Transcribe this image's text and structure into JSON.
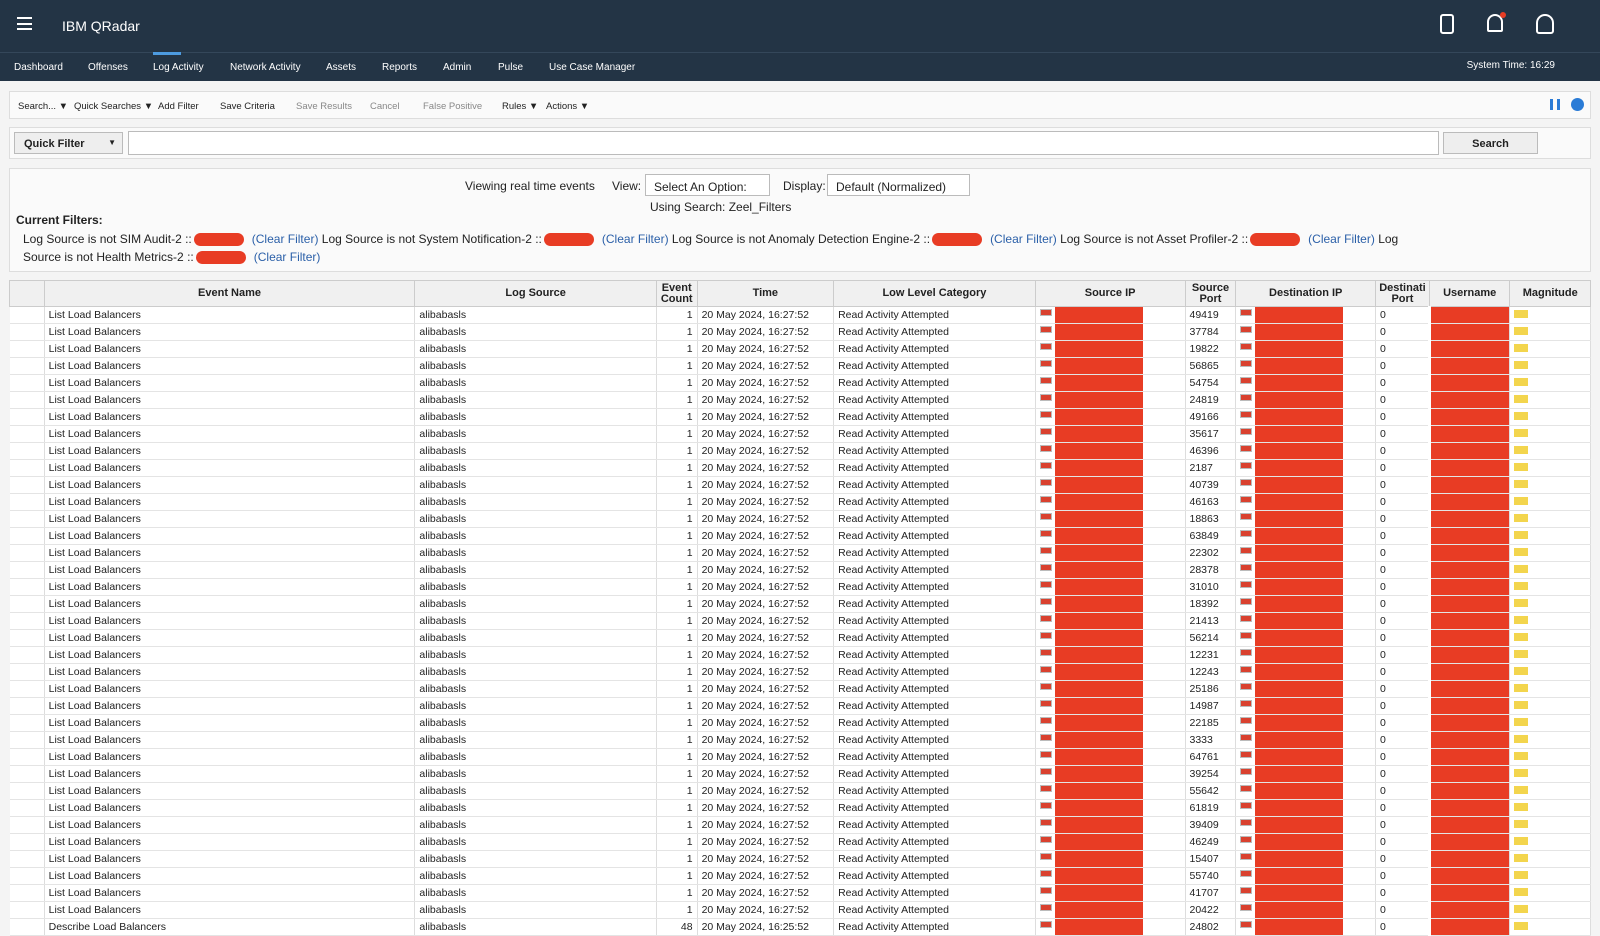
{
  "header": {
    "product": "IBM QRadar",
    "system_time": "System Time: 16:29"
  },
  "nav": [
    "Dashboard",
    "Offenses",
    "Log Activity",
    "Network Activity",
    "Assets",
    "Reports",
    "Admin",
    "Pulse",
    "Use Case Manager"
  ],
  "toolbar": [
    "Search... ▼",
    "Quick Searches ▼",
    "Add Filter",
    "Save Criteria",
    "Save Results",
    "Cancel",
    "False Positive",
    "Rules ▼",
    "Actions ▼"
  ],
  "quick_filter": {
    "label": "Quick Filter",
    "button": "Search"
  },
  "view_panel": {
    "status": "Viewing real time events",
    "view_label": "View:",
    "view_value": "Select An Option:",
    "display_label": "Display:",
    "display_value": "Default (Normalized)",
    "using_search": "Using Search: Zeel_Filters"
  },
  "filters": {
    "title": "Current Filters:",
    "clear": "(Clear Filter)",
    "items": [
      "Log Source is not SIM Audit-2 ::",
      "Log Source is not System Notification-2 ::",
      "Log Source is not Anomaly Detection Engine-2 ::",
      "Log Source is not Asset Profiler-2 ::",
      "Log Source is not Health Metrics-2 ::"
    ]
  },
  "table": {
    "columns": [
      "Event Name",
      "Log Source",
      "Event Count",
      "Time",
      "Low Level Category",
      "Source IP",
      "Source Port",
      "Destination IP",
      "Destinati Port",
      "Username",
      "Magnitude"
    ],
    "rows": [
      [
        "List Load Balancers",
        "alibabasls",
        1,
        "20 May 2024, 16:27:52",
        "Read Activity Attempted",
        49419,
        0
      ],
      [
        "List Load Balancers",
        "alibabasls",
        1,
        "20 May 2024, 16:27:52",
        "Read Activity Attempted",
        37784,
        0
      ],
      [
        "List Load Balancers",
        "alibabasls",
        1,
        "20 May 2024, 16:27:52",
        "Read Activity Attempted",
        19822,
        0
      ],
      [
        "List Load Balancers",
        "alibabasls",
        1,
        "20 May 2024, 16:27:52",
        "Read Activity Attempted",
        56865,
        0
      ],
      [
        "List Load Balancers",
        "alibabasls",
        1,
        "20 May 2024, 16:27:52",
        "Read Activity Attempted",
        54754,
        0
      ],
      [
        "List Load Balancers",
        "alibabasls",
        1,
        "20 May 2024, 16:27:52",
        "Read Activity Attempted",
        24819,
        0
      ],
      [
        "List Load Balancers",
        "alibabasls",
        1,
        "20 May 2024, 16:27:52",
        "Read Activity Attempted",
        49166,
        0
      ],
      [
        "List Load Balancers",
        "alibabasls",
        1,
        "20 May 2024, 16:27:52",
        "Read Activity Attempted",
        35617,
        0
      ],
      [
        "List Load Balancers",
        "alibabasls",
        1,
        "20 May 2024, 16:27:52",
        "Read Activity Attempted",
        46396,
        0
      ],
      [
        "List Load Balancers",
        "alibabasls",
        1,
        "20 May 2024, 16:27:52",
        "Read Activity Attempted",
        2187,
        0
      ],
      [
        "List Load Balancers",
        "alibabasls",
        1,
        "20 May 2024, 16:27:52",
        "Read Activity Attempted",
        40739,
        0
      ],
      [
        "List Load Balancers",
        "alibabasls",
        1,
        "20 May 2024, 16:27:52",
        "Read Activity Attempted",
        46163,
        0
      ],
      [
        "List Load Balancers",
        "alibabasls",
        1,
        "20 May 2024, 16:27:52",
        "Read Activity Attempted",
        18863,
        0
      ],
      [
        "List Load Balancers",
        "alibabasls",
        1,
        "20 May 2024, 16:27:52",
        "Read Activity Attempted",
        63849,
        0
      ],
      [
        "List Load Balancers",
        "alibabasls",
        1,
        "20 May 2024, 16:27:52",
        "Read Activity Attempted",
        22302,
        0
      ],
      [
        "List Load Balancers",
        "alibabasls",
        1,
        "20 May 2024, 16:27:52",
        "Read Activity Attempted",
        28378,
        0
      ],
      [
        "List Load Balancers",
        "alibabasls",
        1,
        "20 May 2024, 16:27:52",
        "Read Activity Attempted",
        31010,
        0
      ],
      [
        "List Load Balancers",
        "alibabasls",
        1,
        "20 May 2024, 16:27:52",
        "Read Activity Attempted",
        18392,
        0
      ],
      [
        "List Load Balancers",
        "alibabasls",
        1,
        "20 May 2024, 16:27:52",
        "Read Activity Attempted",
        21413,
        0
      ],
      [
        "List Load Balancers",
        "alibabasls",
        1,
        "20 May 2024, 16:27:52",
        "Read Activity Attempted",
        56214,
        0
      ],
      [
        "List Load Balancers",
        "alibabasls",
        1,
        "20 May 2024, 16:27:52",
        "Read Activity Attempted",
        12231,
        0
      ],
      [
        "List Load Balancers",
        "alibabasls",
        1,
        "20 May 2024, 16:27:52",
        "Read Activity Attempted",
        12243,
        0
      ],
      [
        "List Load Balancers",
        "alibabasls",
        1,
        "20 May 2024, 16:27:52",
        "Read Activity Attempted",
        25186,
        0
      ],
      [
        "List Load Balancers",
        "alibabasls",
        1,
        "20 May 2024, 16:27:52",
        "Read Activity Attempted",
        14987,
        0
      ],
      [
        "List Load Balancers",
        "alibabasls",
        1,
        "20 May 2024, 16:27:52",
        "Read Activity Attempted",
        22185,
        0
      ],
      [
        "List Load Balancers",
        "alibabasls",
        1,
        "20 May 2024, 16:27:52",
        "Read Activity Attempted",
        3333,
        0
      ],
      [
        "List Load Balancers",
        "alibabasls",
        1,
        "20 May 2024, 16:27:52",
        "Read Activity Attempted",
        64761,
        0
      ],
      [
        "List Load Balancers",
        "alibabasls",
        1,
        "20 May 2024, 16:27:52",
        "Read Activity Attempted",
        39254,
        0
      ],
      [
        "List Load Balancers",
        "alibabasls",
        1,
        "20 May 2024, 16:27:52",
        "Read Activity Attempted",
        55642,
        0
      ],
      [
        "List Load Balancers",
        "alibabasls",
        1,
        "20 May 2024, 16:27:52",
        "Read Activity Attempted",
        61819,
        0
      ],
      [
        "List Load Balancers",
        "alibabasls",
        1,
        "20 May 2024, 16:27:52",
        "Read Activity Attempted",
        39409,
        0
      ],
      [
        "List Load Balancers",
        "alibabasls",
        1,
        "20 May 2024, 16:27:52",
        "Read Activity Attempted",
        46249,
        0
      ],
      [
        "List Load Balancers",
        "alibabasls",
        1,
        "20 May 2024, 16:27:52",
        "Read Activity Attempted",
        15407,
        0
      ],
      [
        "List Load Balancers",
        "alibabasls",
        1,
        "20 May 2024, 16:27:52",
        "Read Activity Attempted",
        55740,
        0
      ],
      [
        "List Load Balancers",
        "alibabasls",
        1,
        "20 May 2024, 16:27:52",
        "Read Activity Attempted",
        41707,
        0
      ],
      [
        "List Load Balancers",
        "alibabasls",
        1,
        "20 May 2024, 16:27:52",
        "Read Activity Attempted",
        20422,
        0
      ],
      [
        "Describe Load Balancers",
        "alibabasls",
        48,
        "20 May 2024, 16:25:52",
        "Read Activity Attempted",
        24802,
        0
      ]
    ]
  }
}
